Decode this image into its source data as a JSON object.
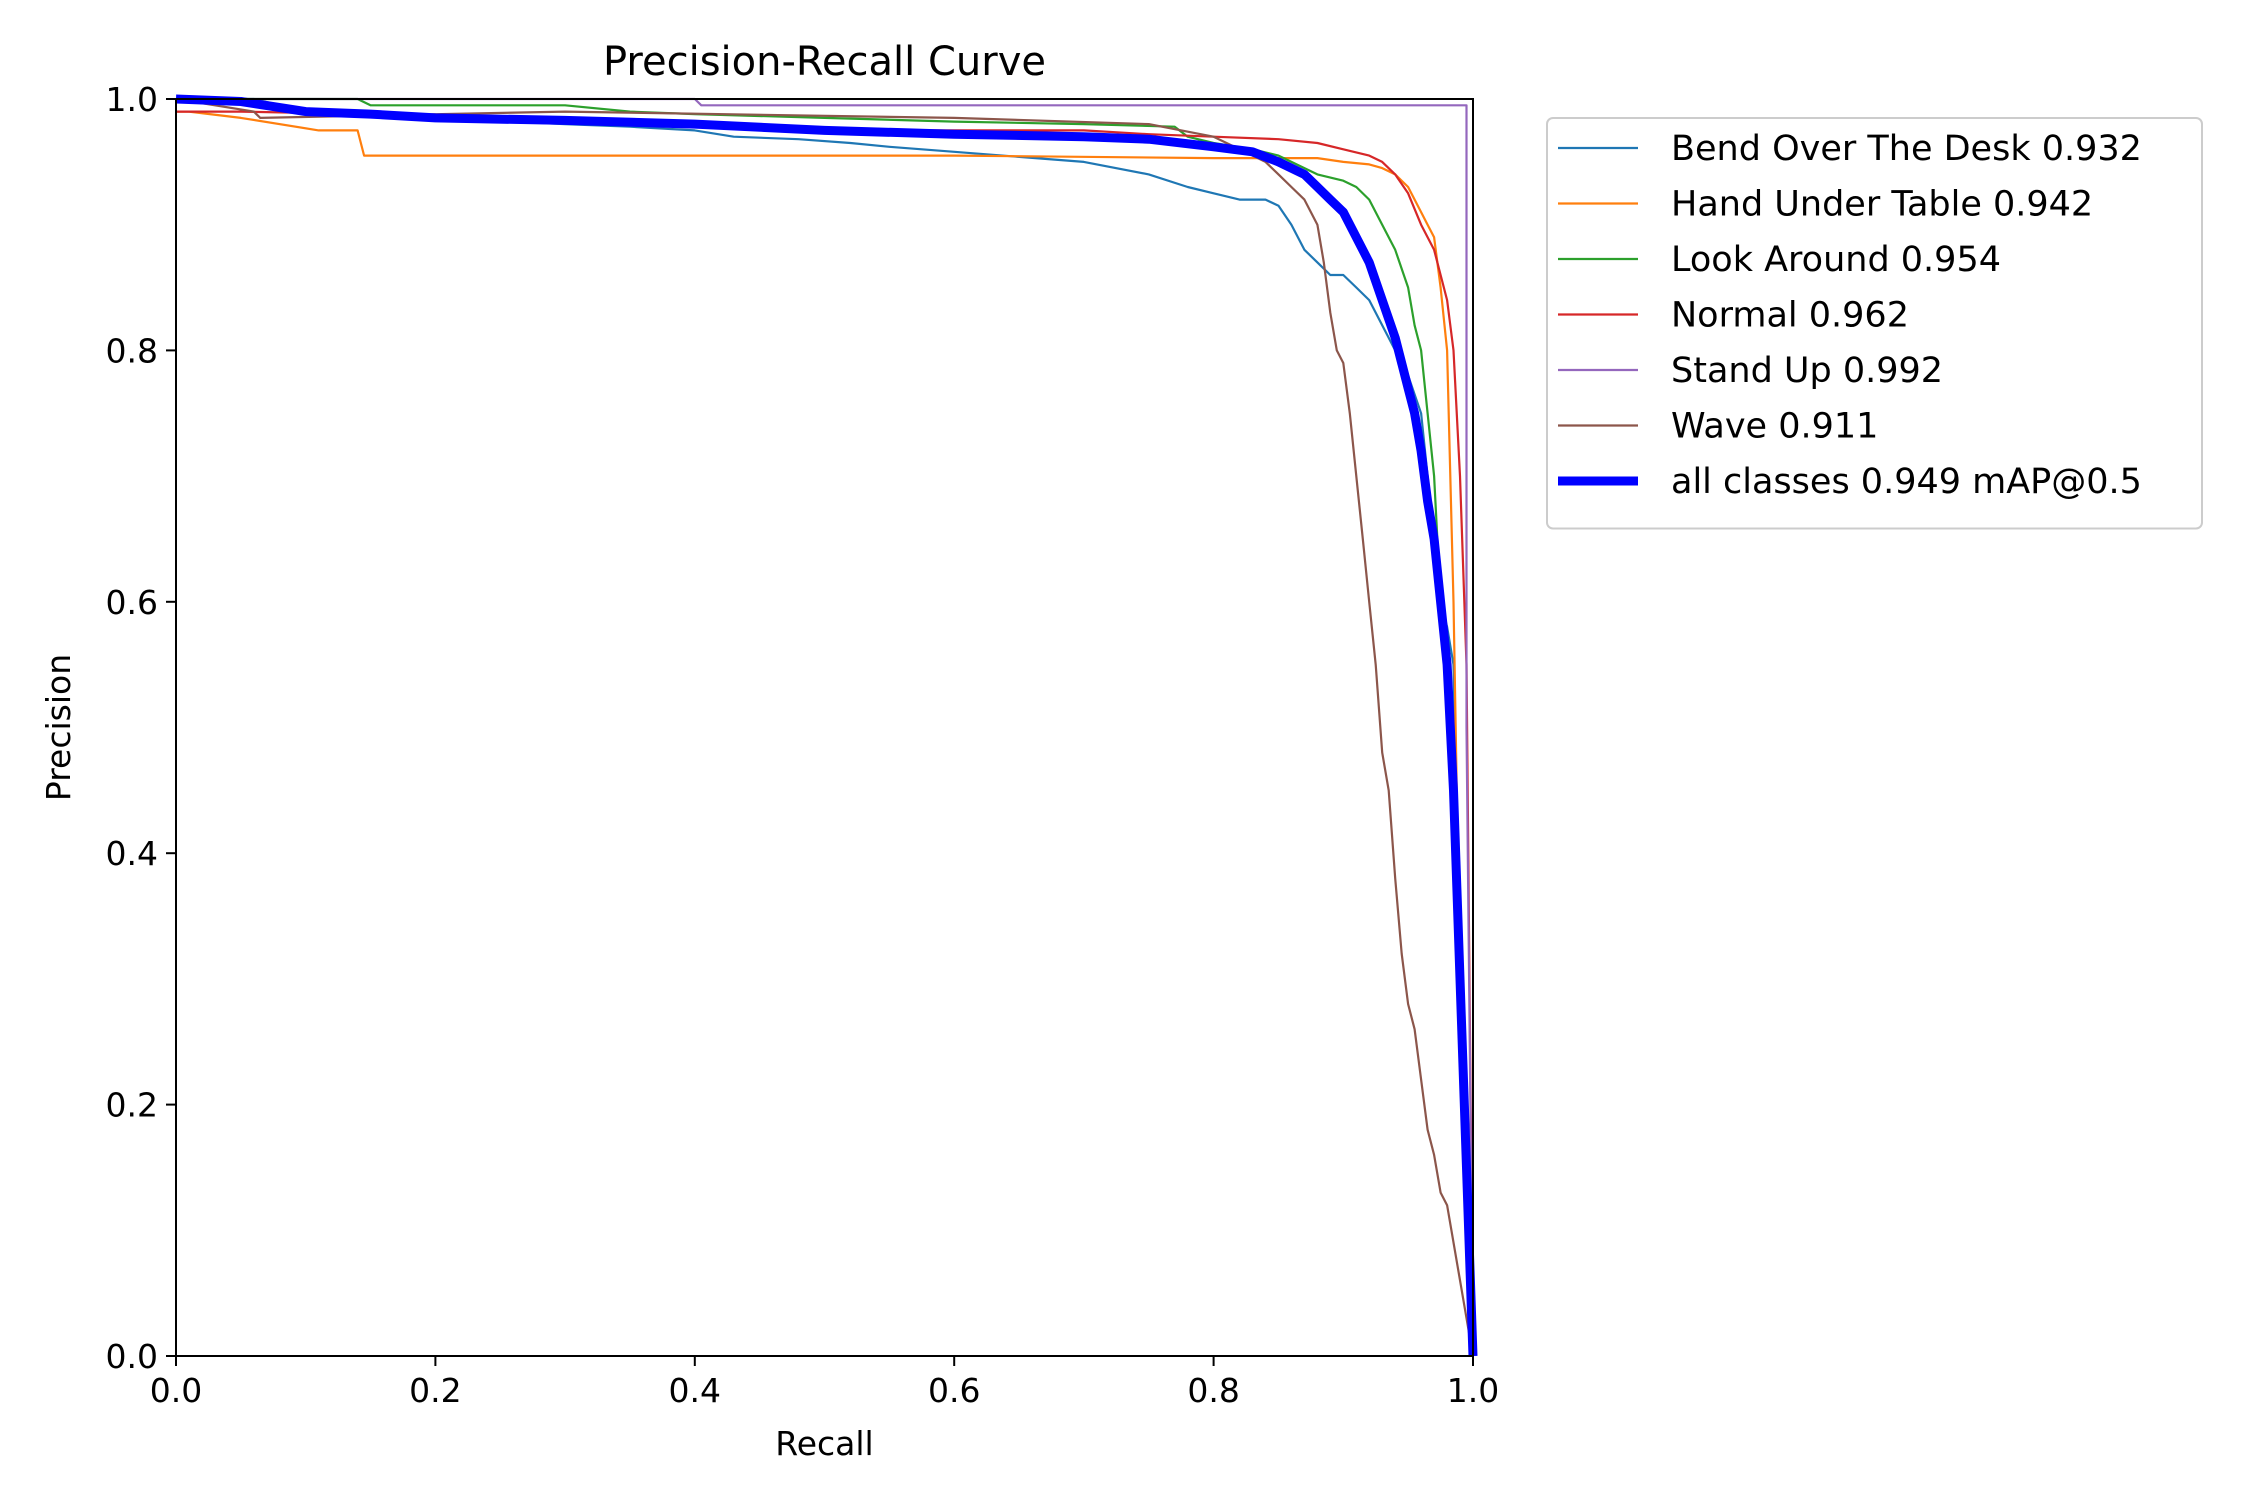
{
  "chart_data": {
    "type": "line",
    "title": "Precision-Recall Curve",
    "xlabel": "Recall",
    "ylabel": "Precision",
    "xlim": [
      0,
      1
    ],
    "ylim": [
      0,
      1
    ],
    "xticks": [
      "0.0",
      "0.2",
      "0.4",
      "0.6",
      "0.8",
      "1.0"
    ],
    "yticks": [
      "0.0",
      "0.2",
      "0.4",
      "0.6",
      "0.8",
      "1.0"
    ],
    "grid": false,
    "legend_position": "outside-top-right",
    "series": [
      {
        "name": "Bend Over The Desk 0.932",
        "color": "#1f77b4",
        "x": [
          0,
          0.01,
          0.06,
          0.1,
          0.15,
          0.2,
          0.3,
          0.35,
          0.4,
          0.43,
          0.48,
          0.52,
          0.55,
          0.6,
          0.7,
          0.75,
          0.78,
          0.8,
          0.82,
          0.84,
          0.85,
          0.86,
          0.87,
          0.88,
          0.89,
          0.9,
          0.91,
          0.92,
          0.93,
          0.94,
          0.95,
          0.96,
          0.965,
          0.97,
          0.975,
          0.98,
          0.985,
          0.99,
          1.0
        ],
        "y": [
          1.0,
          1.0,
          1.0,
          0.99,
          0.988,
          0.985,
          0.98,
          0.978,
          0.975,
          0.97,
          0.968,
          0.965,
          0.962,
          0.958,
          0.95,
          0.94,
          0.93,
          0.925,
          0.92,
          0.92,
          0.915,
          0.9,
          0.88,
          0.87,
          0.86,
          0.86,
          0.85,
          0.84,
          0.82,
          0.8,
          0.78,
          0.75,
          0.7,
          0.65,
          0.6,
          0.58,
          0.55,
          0.3,
          0.0
        ]
      },
      {
        "name": "Hand Under Table 0.942",
        "color": "#ff7f0e",
        "x": [
          0,
          0.01,
          0.05,
          0.11,
          0.14,
          0.145,
          0.2,
          0.4,
          0.6,
          0.8,
          0.88,
          0.9,
          0.92,
          0.93,
          0.94,
          0.95,
          0.96,
          0.965,
          0.97,
          0.975,
          0.98,
          0.985,
          0.99,
          0.995,
          1.0
        ],
        "y": [
          0.99,
          0.99,
          0.985,
          0.975,
          0.975,
          0.955,
          0.955,
          0.955,
          0.955,
          0.953,
          0.953,
          0.95,
          0.948,
          0.945,
          0.94,
          0.93,
          0.91,
          0.9,
          0.89,
          0.85,
          0.8,
          0.6,
          0.3,
          0.1,
          0.0
        ]
      },
      {
        "name": "Look Around 0.954",
        "color": "#2ca02c",
        "x": [
          0,
          0.01,
          0.14,
          0.15,
          0.3,
          0.35,
          0.4,
          0.5,
          0.6,
          0.7,
          0.77,
          0.78,
          0.8,
          0.83,
          0.85,
          0.87,
          0.88,
          0.9,
          0.91,
          0.92,
          0.93,
          0.94,
          0.95,
          0.955,
          0.96,
          0.965,
          0.97,
          0.975,
          0.98,
          0.985,
          0.99,
          0.995,
          1.0
        ],
        "y": [
          1.0,
          1.0,
          1.0,
          0.995,
          0.995,
          0.99,
          0.988,
          0.985,
          0.982,
          0.98,
          0.978,
          0.97,
          0.965,
          0.96,
          0.955,
          0.945,
          0.94,
          0.935,
          0.93,
          0.92,
          0.9,
          0.88,
          0.85,
          0.82,
          0.8,
          0.75,
          0.7,
          0.6,
          0.55,
          0.48,
          0.3,
          0.1,
          0.0
        ]
      },
      {
        "name": "Normal 0.962",
        "color": "#d62728",
        "x": [
          0,
          0.01,
          0.05,
          0.3,
          0.4,
          0.5,
          0.6,
          0.7,
          0.75,
          0.8,
          0.85,
          0.88,
          0.9,
          0.92,
          0.93,
          0.94,
          0.95,
          0.96,
          0.97,
          0.975,
          0.98,
          0.985,
          0.99,
          0.995,
          1.0
        ],
        "y": [
          0.99,
          0.99,
          0.99,
          0.985,
          0.98,
          0.975,
          0.975,
          0.975,
          0.972,
          0.97,
          0.968,
          0.965,
          0.96,
          0.955,
          0.95,
          0.94,
          0.925,
          0.9,
          0.88,
          0.86,
          0.84,
          0.8,
          0.7,
          0.55,
          0.0
        ]
      },
      {
        "name": "Stand Up 0.992",
        "color": "#9467bd",
        "x": [
          0,
          0.4,
          0.405,
          0.995,
          0.995,
          1.0
        ],
        "y": [
          1.0,
          1.0,
          0.995,
          0.995,
          0.5,
          0.0
        ]
      },
      {
        "name": "Wave 0.911",
        "color": "#8c564b",
        "x": [
          0,
          0.06,
          0.065,
          0.3,
          0.6,
          0.75,
          0.8,
          0.82,
          0.84,
          0.85,
          0.86,
          0.87,
          0.88,
          0.885,
          0.89,
          0.895,
          0.9,
          0.905,
          0.91,
          0.915,
          0.92,
          0.925,
          0.93,
          0.935,
          0.94,
          0.945,
          0.95,
          0.955,
          0.96,
          0.965,
          0.97,
          0.975,
          0.98,
          1.0
        ],
        "y": [
          1.0,
          0.99,
          0.985,
          0.99,
          0.985,
          0.98,
          0.97,
          0.96,
          0.95,
          0.94,
          0.93,
          0.92,
          0.9,
          0.87,
          0.83,
          0.8,
          0.79,
          0.75,
          0.7,
          0.65,
          0.6,
          0.55,
          0.48,
          0.45,
          0.38,
          0.32,
          0.28,
          0.26,
          0.22,
          0.18,
          0.16,
          0.13,
          0.12,
          0.0
        ]
      },
      {
        "name": "all classes 0.949 mAP@0.5",
        "color": "#0000ff",
        "bold": true,
        "x": [
          0,
          0.05,
          0.1,
          0.15,
          0.2,
          0.3,
          0.4,
          0.5,
          0.6,
          0.7,
          0.75,
          0.8,
          0.83,
          0.85,
          0.87,
          0.88,
          0.89,
          0.9,
          0.91,
          0.92,
          0.93,
          0.94,
          0.95,
          0.955,
          0.96,
          0.965,
          0.97,
          0.975,
          0.98,
          0.985,
          0.99,
          0.995,
          1.0
        ],
        "y": [
          1.0,
          0.998,
          0.99,
          0.988,
          0.985,
          0.983,
          0.98,
          0.975,
          0.972,
          0.97,
          0.968,
          0.962,
          0.958,
          0.95,
          0.94,
          0.93,
          0.92,
          0.91,
          0.89,
          0.87,
          0.84,
          0.81,
          0.77,
          0.75,
          0.72,
          0.68,
          0.65,
          0.6,
          0.55,
          0.45,
          0.3,
          0.15,
          0.0
        ]
      }
    ]
  }
}
